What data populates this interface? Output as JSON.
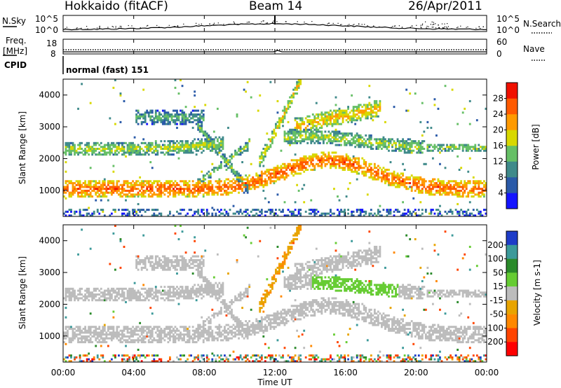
{
  "header": {
    "station": "Hokkaido (fitACF)",
    "beam": "Beam 14",
    "date": "26/Apr/2011"
  },
  "panels": {
    "nsky_label": "N.Sky",
    "nsearch_label": "N.Search",
    "freq_label": "Freq.",
    "freq_unit": "[MHz]",
    "nave_label": "Nave",
    "cpid_label": "CPID",
    "cpid_value": "normal (fast) 151",
    "noise_ticks": [
      "10^5",
      "10^0"
    ],
    "freq_ticks": [
      "18",
      "8"
    ],
    "nave_ticks": [
      "60",
      "0"
    ]
  },
  "chart_data": [
    {
      "type": "heatmap",
      "name": "power",
      "ylabel": "Slant Range [km]",
      "y_ticks": [
        "1000",
        "2000",
        "3000",
        "4000"
      ],
      "ylim": [
        180,
        4500
      ],
      "colorbar_label": "Power [dB]",
      "colorbar_ticks": [
        "4",
        "8",
        "12",
        "16",
        "20",
        "24",
        "28"
      ],
      "colorbar_colors": [
        "#1414ff",
        "#2a5aa8",
        "#3f8a8a",
        "#66bf66",
        "#d8d800",
        "#ff9a00",
        "#ff5a00",
        "#f01000"
      ],
      "colorbar_range": [
        0,
        32
      ]
    },
    {
      "type": "heatmap",
      "name": "velocity",
      "ylabel": "Slant Range [km]",
      "y_ticks": [
        "1000",
        "2000",
        "3000",
        "4000"
      ],
      "ylim": [
        180,
        4500
      ],
      "colorbar_label": "Velocity [m s-1]",
      "colorbar_ticks": [
        "200",
        "100",
        "50",
        "15",
        "-15",
        "-50",
        "-100",
        "-200"
      ],
      "colorbar_colors": [
        "#1e3cc8",
        "#3c9a9a",
        "#2a8a2a",
        "#66cc33",
        "#bcbcbc",
        "#e8a400",
        "#ff8800",
        "#ff4400",
        "#ff0000"
      ]
    }
  ],
  "x_axis": {
    "label": "Time UT",
    "ticks": [
      "00:00",
      "04:00",
      "08:00",
      "12:00",
      "16:00",
      "20:00",
      "00:00"
    ]
  }
}
